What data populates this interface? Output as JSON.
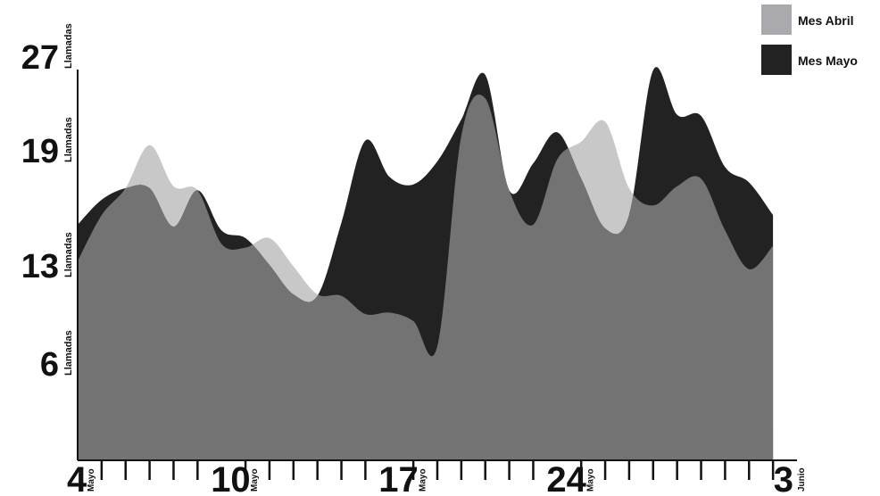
{
  "chart_data": {
    "type": "area",
    "title": "",
    "xlabel": "",
    "ylabel": "",
    "y_unit_label": "Llamadas",
    "ylim": [
      0,
      27
    ],
    "y_ticks": [
      6,
      13,
      19,
      27
    ],
    "x_start": "4 Mayo",
    "x_ticks": [
      {
        "label": "4",
        "unit": "Mayo",
        "day_index": 0
      },
      {
        "label": "10",
        "unit": "Mayo",
        "day_index": 6
      },
      {
        "label": "17",
        "unit": "Mayo",
        "day_index": 13
      },
      {
        "label": "24",
        "unit": "Mayo",
        "day_index": 20
      },
      {
        "label": "3",
        "unit": "Junio",
        "day_index": 30
      }
    ],
    "legend_position": "top-right",
    "series": [
      {
        "name": "Mes Abril",
        "color": "#c8c8c8",
        "values": [
          13.2,
          15.6,
          17.0,
          19.4,
          17.1,
          16.9,
          14.1,
          13.9,
          14.4,
          12.9,
          10.9,
          10.8,
          9.5,
          9.6,
          9.0,
          7.2,
          20.2,
          23.4,
          16.9,
          15.1,
          18.5,
          19.7,
          21.4,
          17.0,
          16.1,
          17.1,
          17.5,
          14.8,
          12.7,
          14.0
        ]
      },
      {
        "name": "Mes Mayo",
        "color": "#222222",
        "values": [
          15.1,
          16.4,
          17.0,
          17.0,
          15.0,
          16.9,
          14.8,
          14.4,
          13.0,
          10.9,
          10.8,
          15.2,
          19.8,
          17.6,
          17.2,
          18.4,
          21.6,
          25.4,
          16.9,
          18.3,
          20.5,
          17.5,
          14.9,
          15.6,
          25.8,
          22.0,
          21.9,
          18.1,
          17.3,
          15.6
        ]
      }
    ]
  },
  "legend": {
    "items": [
      {
        "label": "Mes Abril",
        "color": "#c8c8c8"
      },
      {
        "label": "Mes Mayo",
        "color": "#222222"
      }
    ]
  },
  "overlap_color": "#737373"
}
